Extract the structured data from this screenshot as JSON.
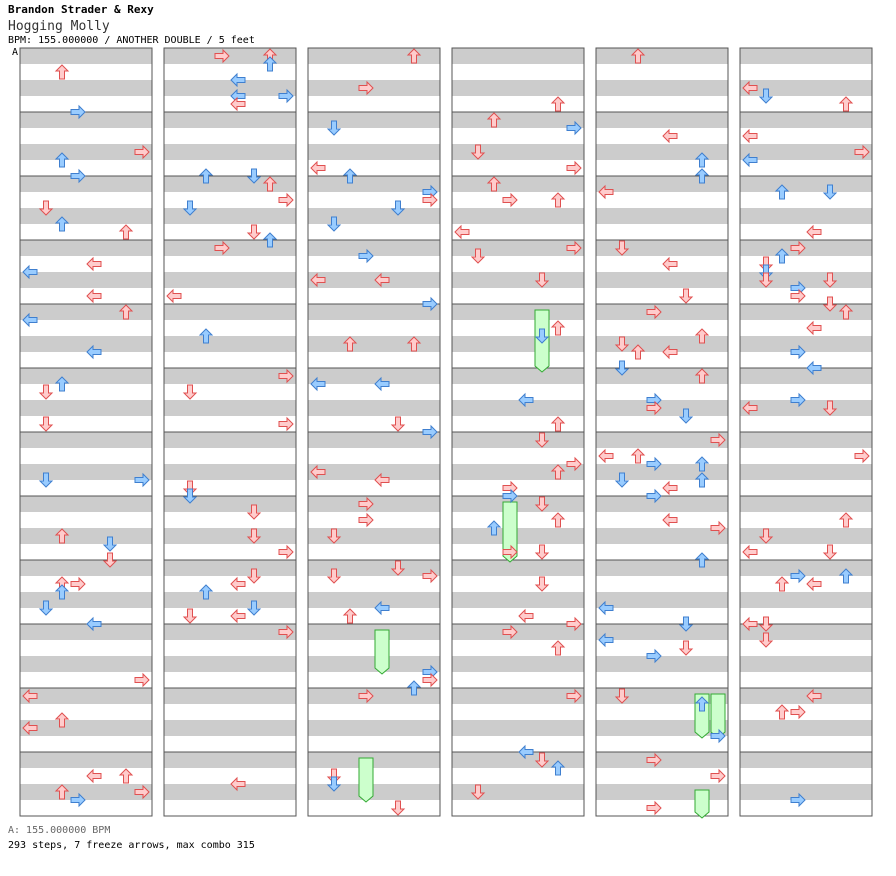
{
  "header": {
    "artist": "Brandon Strader & Rexy",
    "song": "Hogging Molly",
    "info": "BPM: 155.000000 / ANOTHER DOUBLE / 5 feet",
    "section_marker": "A"
  },
  "footer": {
    "bpm_line": "A: 155.000000 BPM",
    "stats_line": "293 steps, 7 freeze arrows, max combo 315"
  },
  "colors": {
    "stripe_gray": "#cccccc",
    "border": "#555555",
    "arrow_red": "#ffcccc",
    "arrow_red_stroke": "#e05050",
    "arrow_blue": "#99ccff",
    "arrow_blue_stroke": "#3f7fcf",
    "freeze_green": "#ccffcc",
    "freeze_stroke": "#33aa33"
  },
  "chart_data": {
    "type": "stepchart",
    "columns": 6,
    "measures_per_column": 12,
    "lanes": 8,
    "lane_labels": [
      "L",
      "D",
      "U",
      "R",
      "L",
      "D",
      "U",
      "R"
    ],
    "notes_summary": "293 steps, 7 freeze arrows, max combo 315"
  }
}
